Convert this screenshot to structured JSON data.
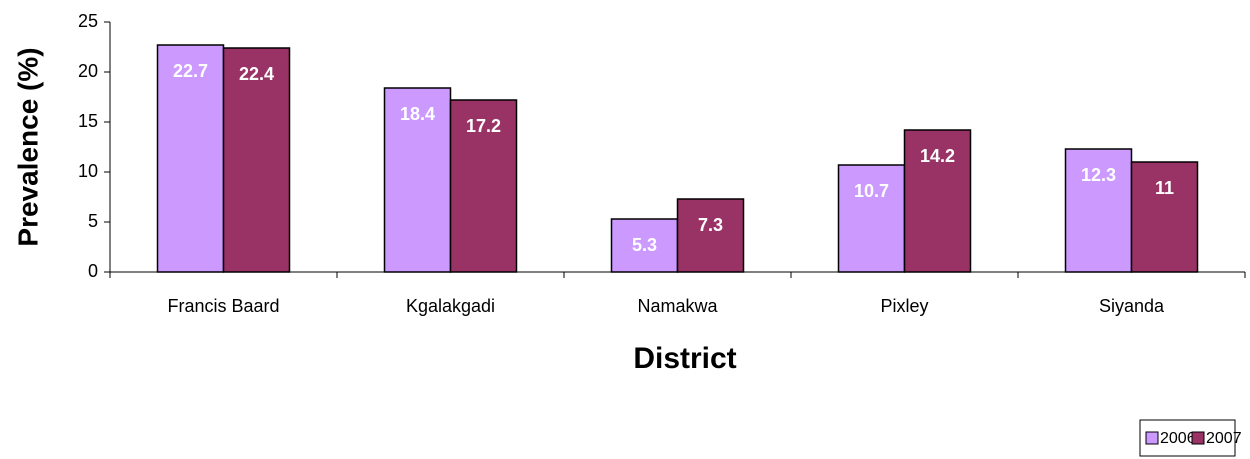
{
  "chart_data": {
    "type": "bar",
    "x_label": "District",
    "y_label": "Prevalence (%)",
    "categories": [
      "Francis Baard",
      "Kgalakgadi",
      "Namakwa",
      "Pixley",
      "Siyanda"
    ],
    "series": [
      {
        "name": "2006",
        "color": "#cc99ff",
        "values": [
          22.7,
          18.4,
          5.3,
          10.7,
          12.3
        ]
      },
      {
        "name": "2007",
        "color": "#993366",
        "values": [
          22.4,
          17.2,
          7.3,
          14.2,
          11
        ]
      }
    ],
    "ylim": [
      0,
      25
    ],
    "yticks": [
      0,
      5,
      10,
      15,
      20,
      25
    ],
    "legend": "bottom-right"
  }
}
